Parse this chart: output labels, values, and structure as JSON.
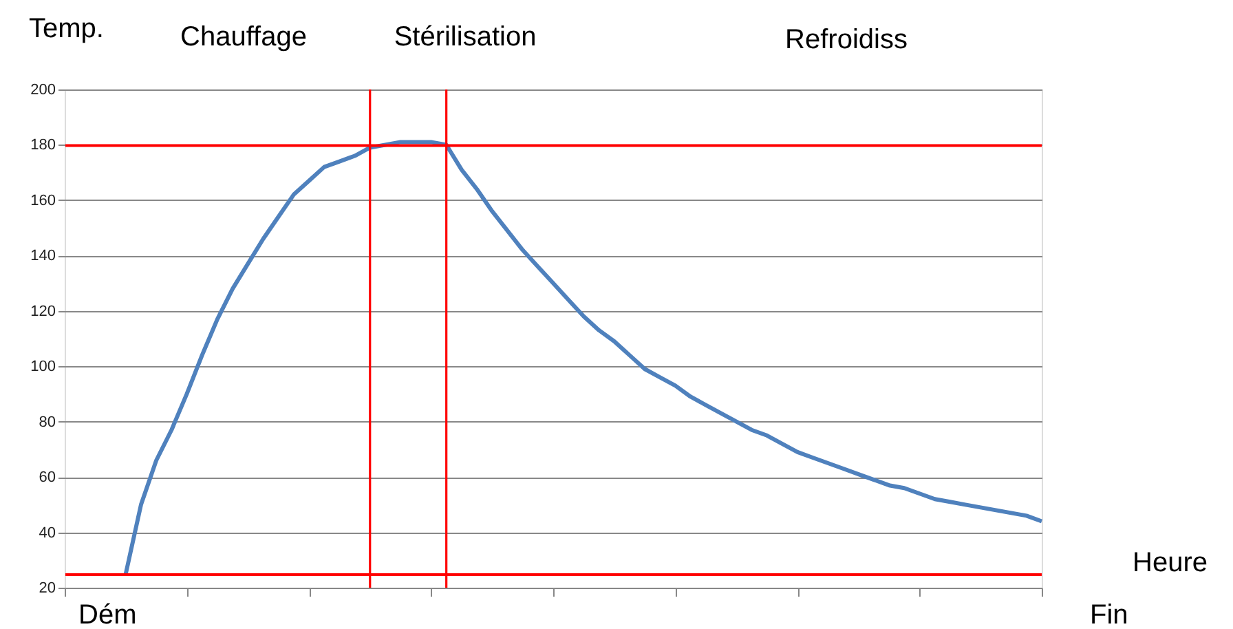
{
  "chart_data": {
    "type": "line",
    "ylabel": "Temp.",
    "xlabel": "Heure",
    "annotations": [
      "Chauffage",
      "Stérilisation",
      "Refroidiss",
      "Dém",
      "Fin"
    ],
    "categories": [
      null,
      null,
      null,
      null,
      null,
      null,
      null,
      null,
      null,
      null,
      null,
      null,
      null,
      null,
      null,
      null,
      null,
      null,
      null,
      null,
      null,
      null,
      null,
      null,
      null,
      null,
      null,
      null,
      null,
      null,
      null,
      null,
      null,
      null,
      null,
      null,
      null,
      null,
      null,
      null,
      null,
      null,
      null,
      null,
      null,
      null,
      null,
      null,
      null,
      null,
      null,
      null,
      null,
      null,
      null,
      null,
      null,
      null,
      null,
      null,
      null,
      null,
      null,
      null,
      null
    ],
    "series": [
      {
        "color": "#4f81bd",
        "values": [
          null,
          null,
          null,
          null,
          25,
          50,
          66,
          77,
          90,
          104,
          117,
          128,
          137,
          146,
          154,
          162,
          167,
          172,
          174,
          176,
          179,
          180,
          181,
          181,
          181,
          180,
          171,
          164,
          156,
          149,
          142,
          136,
          130,
          124,
          118,
          113,
          109,
          104,
          99,
          96,
          93,
          89,
          86,
          83,
          80,
          77,
          75,
          72,
          69,
          67,
          65,
          63,
          61,
          59,
          57,
          56,
          54,
          52,
          51,
          50,
          49,
          48,
          47,
          46,
          44
        ]
      }
    ],
    "ylim": [
      20,
      200
    ],
    "yticks": [
      20,
      40,
      60,
      80,
      100,
      120,
      140,
      160,
      180,
      200
    ],
    "ref_lines": [
      {
        "axis": "y",
        "value": 180,
        "color": "#ff0000"
      },
      {
        "axis": "y",
        "value": 25,
        "color": "#ff0000"
      }
    ],
    "grid": "y",
    "tick_labels": "y",
    "marker": "none",
    "line_style": "solid",
    "legend": false
  }
}
